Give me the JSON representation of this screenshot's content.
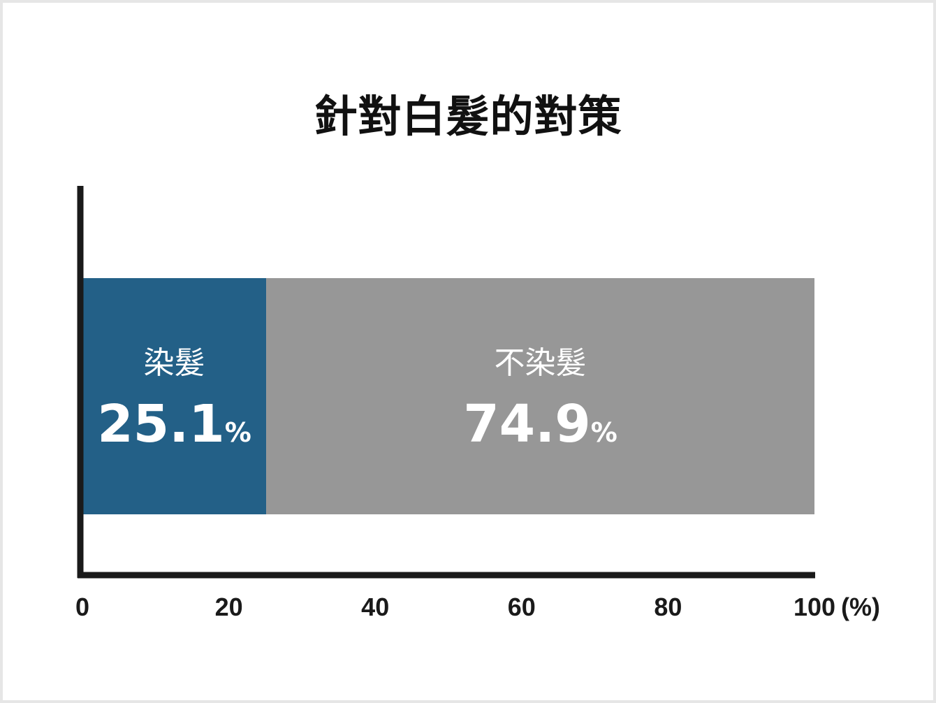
{
  "title": "針對白髮的對策",
  "chart_data": {
    "type": "bar",
    "orientation": "horizontal",
    "stacked": true,
    "title": "針對白髮的對策",
    "xlim": [
      0,
      100
    ],
    "x_ticks": [
      "0",
      "20",
      "40",
      "60",
      "80",
      "100"
    ],
    "x_unit": "(%)",
    "segments": [
      {
        "label": "染髮",
        "value": 25.1,
        "value_text": "25.1",
        "unit": "%",
        "color": "#236087"
      },
      {
        "label": "不染髮",
        "value": 74.9,
        "value_text": "74.9",
        "unit": "%",
        "color": "#979797"
      }
    ],
    "legend": "none",
    "grid": false
  }
}
